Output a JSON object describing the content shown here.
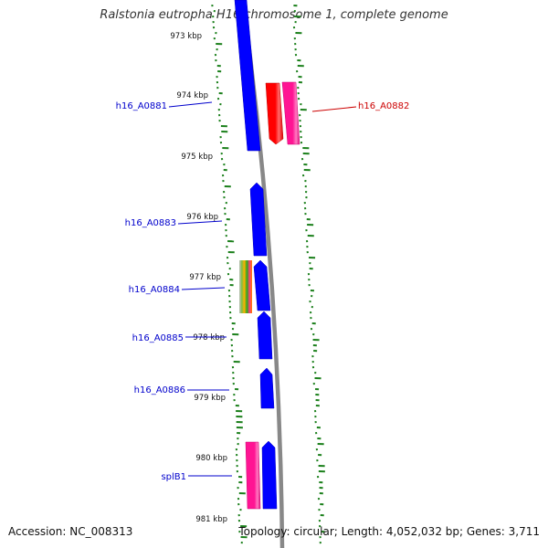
{
  "title": "Ralstonia eutropha H16 chromosome 1, complete genome",
  "footer": {
    "accession": "Accession: NC_008313",
    "summary": "Topology: circular; Length: 4,052,032 bp; Genes: 3,711"
  },
  "kbp_labels": [
    "973 kbp",
    "974 kbp",
    "975 kbp",
    "976 kbp",
    "977 kbp",
    "978 kbp",
    "979 kbp",
    "980 kbp",
    "981 kbp"
  ],
  "gene_labels": [
    {
      "id": "h16_A0881",
      "color": "#0000cc"
    },
    {
      "id": "h16_A0882",
      "color": "#cc0000"
    },
    {
      "id": "h16_A0883",
      "color": "#0000cc"
    },
    {
      "id": "h16_A0884",
      "color": "#0000cc"
    },
    {
      "id": "h16_A0885",
      "color": "#0000cc"
    },
    {
      "id": "h16_A0886",
      "color": "#0000cc"
    },
    {
      "id": "splB1",
      "color": "#0000cc"
    }
  ],
  "colors": {
    "cds": "#0000ff",
    "rrna_red": "#ff0000",
    "rrna_pink": "#ff1493",
    "backbone": "#888888",
    "gc_ticks": "#1a7f1a"
  }
}
